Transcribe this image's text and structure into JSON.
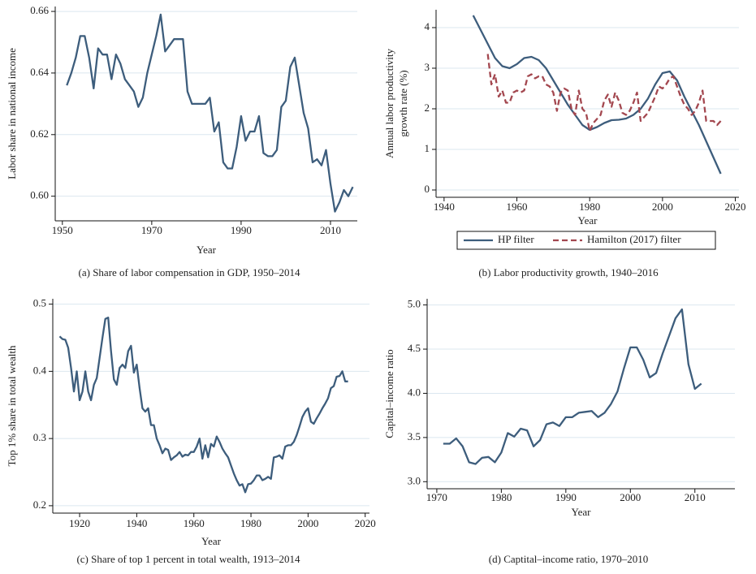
{
  "chart_data": [
    {
      "type": "line",
      "caption": "(a) Share of labor compensation in GDP, 1950–2014",
      "xlabel": "Year",
      "ylabel": "Labor share in national income",
      "color": "#3d5d7c",
      "grid": true,
      "xlim": [
        1948.4,
        2016
      ],
      "xticks": [
        1950,
        1970,
        1990,
        2010
      ],
      "ylim": [
        0.592,
        0.6616
      ],
      "yticks": [
        {
          "value": 0.6,
          "label": "0.60"
        },
        0.62,
        0.64,
        0.66
      ],
      "x": [
        1951,
        1952,
        1953,
        1954,
        1955,
        1956,
        1957,
        1958,
        1959,
        1960,
        1961,
        1962,
        1963,
        1964,
        1965,
        1966,
        1967,
        1968,
        1969,
        1970,
        1971,
        1972,
        1973,
        1974,
        1975,
        1976,
        1977,
        1978,
        1979,
        1980,
        1981,
        1982,
        1983,
        1984,
        1985,
        1986,
        1987,
        1988,
        1989,
        1990,
        1991,
        1992,
        1993,
        1994,
        1995,
        1996,
        1997,
        1998,
        1999,
        2000,
        2001,
        2002,
        2003,
        2004,
        2005,
        2006,
        2007,
        2008,
        2009,
        2010,
        2011,
        2012,
        2013,
        2014,
        2015
      ],
      "values": [
        0.636,
        0.64,
        0.645,
        0.652,
        0.652,
        0.645,
        0.635,
        0.648,
        0.646,
        0.646,
        0.638,
        0.646,
        0.643,
        0.638,
        0.636,
        0.634,
        0.629,
        0.632,
        0.64,
        0.646,
        0.652,
        0.659,
        0.647,
        0.649,
        0.651,
        0.651,
        0.651,
        0.634,
        0.63,
        0.63,
        0.63,
        0.63,
        0.632,
        0.621,
        0.624,
        0.611,
        0.609,
        0.609,
        0.616,
        0.626,
        0.618,
        0.621,
        0.621,
        0.626,
        0.614,
        0.613,
        0.613,
        0.615,
        0.629,
        0.631,
        0.642,
        0.645,
        0.636,
        0.627,
        0.622,
        0.611,
        0.612,
        0.61,
        0.615,
        0.604,
        0.595,
        0.598,
        0.602,
        0.6,
        0.603
      ]
    },
    {
      "type": "line",
      "caption": "(b) Labor productivity growth, 1940–2016",
      "xlabel": "Year",
      "ylabel": [
        "Annual labor productivity",
        "growth rate (%)"
      ],
      "grid": true,
      "legend": "bottom",
      "xlim": [
        1937.8,
        2021
      ],
      "xticks": [
        1940,
        1960,
        1980,
        2000,
        2020
      ],
      "ylim": [
        -0.18,
        4.44
      ],
      "yticks": [
        0,
        1,
        2,
        3,
        4
      ],
      "series": [
        {
          "name": "HP filter",
          "color": "#3d5d7c",
          "style": "solid",
          "x": [
            1948,
            1950,
            1952,
            1954,
            1956,
            1958,
            1960,
            1962,
            1964,
            1966,
            1968,
            1970,
            1972,
            1974,
            1976,
            1978,
            1980,
            1982,
            1984,
            1986,
            1988,
            1990,
            1992,
            1994,
            1996,
            1998,
            2000,
            2002,
            2004,
            2006,
            2008,
            2010,
            2012,
            2014,
            2016
          ],
          "values": [
            4.3,
            3.95,
            3.6,
            3.25,
            3.05,
            3.0,
            3.1,
            3.25,
            3.28,
            3.2,
            3.0,
            2.7,
            2.4,
            2.1,
            1.85,
            1.6,
            1.48,
            1.55,
            1.65,
            1.72,
            1.73,
            1.76,
            1.85,
            2.0,
            2.25,
            2.6,
            2.88,
            2.92,
            2.7,
            2.3,
            1.95,
            1.6,
            1.2,
            0.8,
            0.4
          ]
        },
        {
          "name": "Hamilton (2017) filter",
          "color": "#a3474f",
          "style": "dashed",
          "x": [
            1952,
            1953,
            1954,
            1955,
            1956,
            1957,
            1958,
            1959,
            1960,
            1961,
            1962,
            1963,
            1964,
            1965,
            1966,
            1967,
            1968,
            1969,
            1970,
            1971,
            1972,
            1973,
            1974,
            1975,
            1976,
            1977,
            1978,
            1979,
            1980,
            1981,
            1982,
            1983,
            1984,
            1985,
            1986,
            1987,
            1988,
            1989,
            1990,
            1991,
            1992,
            1993,
            1994,
            1995,
            1996,
            1997,
            1998,
            1999,
            2000,
            2001,
            2002,
            2003,
            2004,
            2005,
            2006,
            2007,
            2008,
            2009,
            2010,
            2011,
            2012,
            2013,
            2014,
            2015,
            2016
          ],
          "values": [
            3.35,
            2.6,
            2.85,
            2.3,
            2.45,
            2.15,
            2.15,
            2.4,
            2.45,
            2.4,
            2.45,
            2.8,
            2.85,
            2.75,
            2.8,
            2.8,
            2.6,
            2.55,
            2.4,
            1.95,
            2.4,
            2.5,
            2.45,
            2.0,
            1.85,
            2.45,
            2.0,
            1.9,
            1.45,
            1.65,
            1.75,
            1.85,
            2.2,
            2.35,
            2.05,
            2.4,
            2.2,
            1.9,
            1.85,
            1.95,
            2.15,
            2.4,
            1.7,
            1.8,
            1.9,
            2.1,
            2.3,
            2.55,
            2.5,
            2.6,
            2.75,
            2.8,
            2.55,
            2.3,
            2.1,
            2.0,
            1.85,
            1.95,
            2.15,
            2.45,
            1.7,
            1.7,
            1.7,
            1.6,
            1.7
          ]
        }
      ]
    },
    {
      "type": "line",
      "caption": "(c) Share of top 1 percent in total wealth, 1913–2014",
      "xlabel": "Year",
      "ylabel": "Top 1% share in total wealth",
      "color": "#3d5d7c",
      "grid": true,
      "xlim": [
        1910.6,
        2021.5
      ],
      "xticks": [
        1920,
        1940,
        1960,
        1980,
        2000,
        2020
      ],
      "ylim": [
        0.189,
        0.508
      ],
      "yticks": [
        0.2,
        0.3,
        0.4,
        0.5
      ],
      "x": [
        1913,
        1914,
        1915,
        1916,
        1917,
        1918,
        1919,
        1920,
        1921,
        1922,
        1923,
        1924,
        1925,
        1926,
        1927,
        1928,
        1929,
        1930,
        1931,
        1932,
        1933,
        1934,
        1935,
        1936,
        1937,
        1938,
        1939,
        1940,
        1941,
        1942,
        1943,
        1944,
        1945,
        1946,
        1947,
        1948,
        1949,
        1950,
        1951,
        1952,
        1953,
        1954,
        1955,
        1956,
        1957,
        1958,
        1959,
        1960,
        1961,
        1962,
        1963,
        1964,
        1965,
        1966,
        1967,
        1968,
        1969,
        1970,
        1971,
        1972,
        1973,
        1974,
        1975,
        1976,
        1977,
        1978,
        1979,
        1980,
        1981,
        1982,
        1983,
        1984,
        1985,
        1986,
        1987,
        1988,
        1989,
        1990,
        1991,
        1992,
        1993,
        1994,
        1995,
        1996,
        1997,
        1998,
        1999,
        2000,
        2001,
        2002,
        2003,
        2004,
        2005,
        2006,
        2007,
        2008,
        2009,
        2010,
        2011,
        2012,
        2013,
        2014
      ],
      "values": [
        0.452,
        0.448,
        0.447,
        0.435,
        0.405,
        0.37,
        0.4,
        0.357,
        0.37,
        0.4,
        0.37,
        0.357,
        0.38,
        0.39,
        0.42,
        0.45,
        0.478,
        0.48,
        0.43,
        0.388,
        0.38,
        0.405,
        0.41,
        0.405,
        0.43,
        0.438,
        0.398,
        0.41,
        0.375,
        0.345,
        0.34,
        0.345,
        0.32,
        0.32,
        0.3,
        0.29,
        0.278,
        0.285,
        0.283,
        0.268,
        0.272,
        0.275,
        0.28,
        0.273,
        0.276,
        0.275,
        0.28,
        0.28,
        0.288,
        0.3,
        0.27,
        0.29,
        0.272,
        0.292,
        0.288,
        0.303,
        0.295,
        0.285,
        0.278,
        0.272,
        0.26,
        0.248,
        0.238,
        0.23,
        0.232,
        0.22,
        0.232,
        0.233,
        0.238,
        0.245,
        0.245,
        0.238,
        0.24,
        0.243,
        0.24,
        0.272,
        0.273,
        0.275,
        0.27,
        0.288,
        0.29,
        0.29,
        0.295,
        0.305,
        0.318,
        0.332,
        0.34,
        0.345,
        0.325,
        0.322,
        0.33,
        0.337,
        0.345,
        0.352,
        0.36,
        0.375,
        0.378,
        0.392,
        0.393,
        0.4,
        0.385,
        0.385
      ]
    },
    {
      "type": "line",
      "caption": "(d) Captital–income ratio, 1970–2010",
      "xlabel": "Year",
      "ylabel": "Capital–income ratio",
      "color": "#3d5d7c",
      "grid": true,
      "xlim": [
        1968.5,
        2016.2
      ],
      "xticks": [
        1970,
        1980,
        1990,
        2000,
        2010
      ],
      "ylim": [
        2.92,
        5.07
      ],
      "yticks": [
        {
          "value": 3,
          "label": "3.0"
        },
        3.5,
        {
          "value": 4,
          "label": "4.0"
        },
        4.5,
        {
          "value": 5,
          "label": "5.0"
        }
      ],
      "x": [
        1971,
        1972,
        1973,
        1974,
        1975,
        1976,
        1977,
        1978,
        1979,
        1980,
        1981,
        1982,
        1983,
        1984,
        1985,
        1986,
        1987,
        1988,
        1989,
        1990,
        1991,
        1992,
        1993,
        1994,
        1995,
        1996,
        1997,
        1998,
        1999,
        2000,
        2001,
        2002,
        2003,
        2004,
        2005,
        2006,
        2007,
        2008,
        2009,
        2010,
        2011
      ],
      "values": [
        3.43,
        3.43,
        3.49,
        3.4,
        3.22,
        3.2,
        3.27,
        3.28,
        3.22,
        3.33,
        3.55,
        3.51,
        3.6,
        3.58,
        3.4,
        3.47,
        3.65,
        3.67,
        3.63,
        3.73,
        3.73,
        3.78,
        3.79,
        3.8,
        3.73,
        3.78,
        3.88,
        4.02,
        4.28,
        4.52,
        4.52,
        4.38,
        4.18,
        4.23,
        4.45,
        4.65,
        4.85,
        4.95,
        4.33,
        4.05,
        4.11
      ]
    }
  ]
}
